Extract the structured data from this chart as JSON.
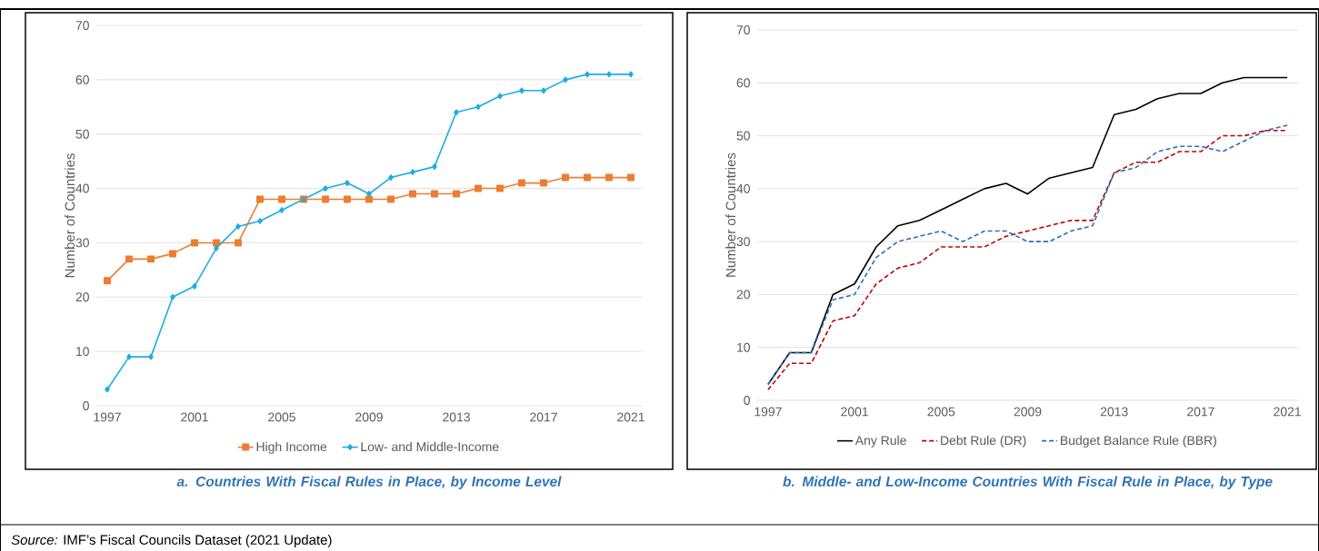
{
  "chart_data": [
    {
      "type": "line",
      "title": "a. Countries With Fiscal Rules in Place, by Income Level",
      "ylabel": "Number of Countries",
      "x": [
        1997,
        1998,
        1999,
        2000,
        2001,
        2002,
        2003,
        2004,
        2005,
        2006,
        2007,
        2008,
        2009,
        2010,
        2011,
        2012,
        2013,
        2014,
        2015,
        2016,
        2017,
        2018,
        2019,
        2020,
        2021
      ],
      "series": [
        {
          "name": "High Income",
          "color": "#ed7d31",
          "marker": "square",
          "values": [
            23,
            27,
            27,
            28,
            30,
            30,
            30,
            38,
            38,
            38,
            38,
            38,
            38,
            38,
            39,
            39,
            39,
            40,
            40,
            41,
            41,
            42,
            42,
            42,
            42
          ]
        },
        {
          "name": "Low- and Middle-Income",
          "color": "#1cade4",
          "marker": "diamond",
          "values": [
            3,
            9,
            9,
            20,
            22,
            29,
            33,
            34,
            36,
            38,
            40,
            41,
            39,
            42,
            43,
            44,
            54,
            55,
            57,
            58,
            58,
            60,
            61,
            61,
            61
          ]
        }
      ],
      "xlim": [
        1996.5,
        2021.5
      ],
      "xticks": [
        1997,
        2001,
        2005,
        2009,
        2013,
        2017,
        2021
      ],
      "ylim": [
        0,
        70
      ],
      "yticks": [
        0,
        10,
        20,
        30,
        40,
        50,
        60,
        70
      ],
      "grid": "y",
      "legend": "bottom",
      "annotations": [
        "*Source:* IMF’s Fiscal Councils Dataset (2021 Update)"
      ]
    },
    {
      "type": "line",
      "title": "b. Middle- and Low-Income Countries With Fiscal Rule in Place, by Type",
      "ylabel": "Number of Countries",
      "x": [
        1997,
        1998,
        1999,
        2000,
        2001,
        2002,
        2003,
        2004,
        2005,
        2006,
        2007,
        2008,
        2009,
        2010,
        2011,
        2012,
        2013,
        2014,
        2015,
        2016,
        2017,
        2018,
        2019,
        2020,
        2021
      ],
      "series": [
        {
          "name": "Any Rule",
          "color": "#000000",
          "line_style": "solid",
          "values": [
            3,
            9,
            9,
            20,
            22,
            29,
            33,
            34,
            36,
            38,
            40,
            41,
            39,
            42,
            43,
            44,
            54,
            55,
            57,
            58,
            58,
            60,
            61,
            61,
            61
          ]
        },
        {
          "name": "Debt Rule (DR)",
          "color": "#c00000",
          "line_style": "dashed",
          "values": [
            2,
            7,
            7,
            15,
            16,
            22,
            25,
            26,
            29,
            29,
            29,
            31,
            32,
            33,
            34,
            34,
            43,
            45,
            45,
            47,
            47,
            50,
            50,
            51,
            51
          ]
        },
        {
          "name": "Budget Balance Rule (BBR)",
          "color": "#2e6db4",
          "line_style": "dashed",
          "values": [
            3,
            9,
            9,
            19,
            20,
            27,
            30,
            31,
            32,
            30,
            32,
            32,
            30,
            30,
            32,
            33,
            43,
            44,
            47,
            48,
            48,
            47,
            49,
            51,
            52
          ]
        }
      ],
      "xlim": [
        1996.5,
        2021.5
      ],
      "xticks": [
        1997,
        2001,
        2005,
        2009,
        2013,
        2017,
        2021
      ],
      "ylim": [
        0,
        70
      ],
      "yticks": [
        0,
        10,
        20,
        30,
        40,
        50,
        60,
        70
      ],
      "grid": "y",
      "legend": "bottom",
      "marker": "none"
    }
  ]
}
